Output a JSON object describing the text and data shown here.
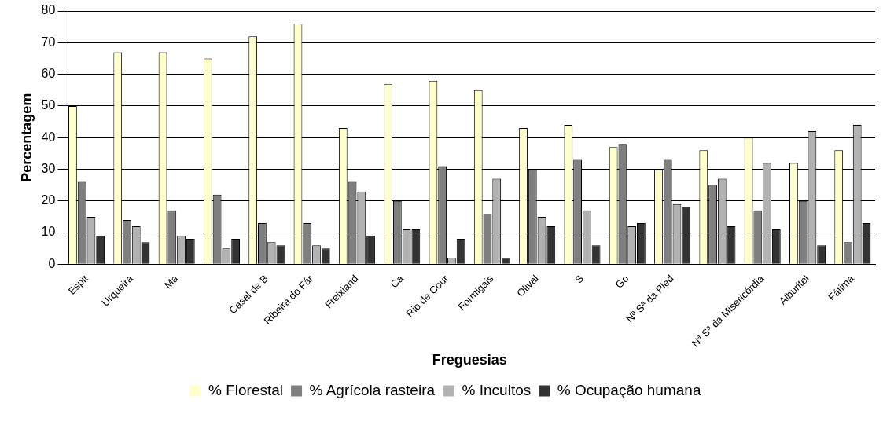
{
  "chart_data": {
    "type": "bar",
    "xlabel": "Freguesias",
    "ylabel": "Percentagem",
    "categories": [
      "Espit",
      "Urqueira",
      "Ma",
      null,
      "Casal de B",
      "Ribeira do Fár",
      "Freixiand",
      "Ca",
      "Rio de Cour",
      "Formigais",
      "Olival",
      "S",
      "Go",
      "Nª Sª da Pied",
      null,
      "Nª Sª da Misericórdia",
      "Alburitel",
      "Fátima"
    ],
    "series": [
      {
        "name": "% Florestal",
        "color": "#ffffcc",
        "values": [
          50,
          67,
          67,
          65,
          72,
          76,
          43,
          57,
          58,
          55,
          43,
          44,
          37,
          30,
          36,
          40,
          32,
          36
        ]
      },
      {
        "name": "% Agrícola rasteira",
        "color": "#7f7f7f",
        "values": [
          26,
          14,
          17,
          22,
          13,
          13,
          26,
          20,
          31,
          16,
          30,
          33,
          38,
          33,
          25,
          17,
          20,
          7
        ]
      },
      {
        "name": "% Incultos",
        "color": "#b2b2b2",
        "values": [
          15,
          12,
          9,
          5,
          7,
          6,
          23,
          11,
          2,
          27,
          15,
          17,
          12,
          19,
          27,
          32,
          42,
          44
        ]
      },
      {
        "name": "% Ocupação humana",
        "color": "#333333",
        "values": [
          9,
          7,
          8,
          8,
          6,
          5,
          9,
          11,
          8,
          2,
          12,
          6,
          13,
          18,
          12,
          11,
          6,
          13
        ]
      }
    ],
    "ylim": [
      0,
      80
    ],
    "yticks": [
      0,
      10,
      20,
      30,
      40,
      50,
      60,
      70,
      80
    ],
    "grid": "y",
    "legend": "bottom"
  }
}
